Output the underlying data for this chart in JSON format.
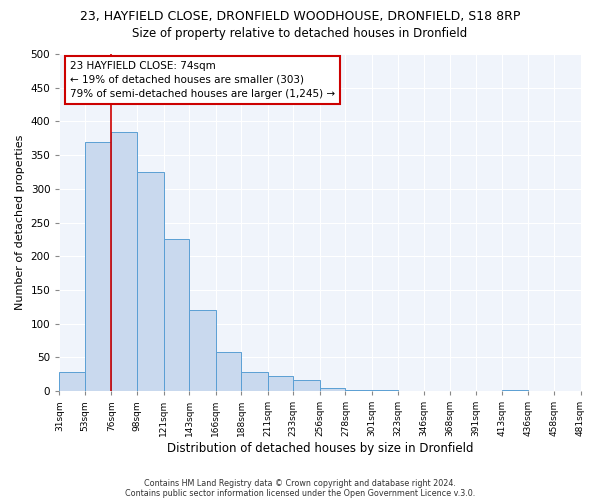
{
  "title": "23, HAYFIELD CLOSE, DRONFIELD WOODHOUSE, DRONFIELD, S18 8RP",
  "subtitle": "Size of property relative to detached houses in Dronfield",
  "xlabel": "Distribution of detached houses by size in Dronfield",
  "ylabel": "Number of detached properties",
  "bar_edges": [
    31,
    53,
    76,
    98,
    121,
    143,
    166,
    188,
    211,
    233,
    256,
    278,
    301,
    323,
    346,
    368,
    391,
    413,
    436,
    458,
    481
  ],
  "bar_heights": [
    28,
    370,
    385,
    325,
    225,
    120,
    58,
    28,
    22,
    16,
    5,
    1,
    1,
    0,
    0,
    0,
    0,
    2,
    0,
    0
  ],
  "bar_color": "#c9d9ee",
  "bar_edge_color": "#5a9fd4",
  "x_tick_labels": [
    "31sqm",
    "53sqm",
    "76sqm",
    "98sqm",
    "121sqm",
    "143sqm",
    "166sqm",
    "188sqm",
    "211sqm",
    "233sqm",
    "256sqm",
    "278sqm",
    "301sqm",
    "323sqm",
    "346sqm",
    "368sqm",
    "391sqm",
    "413sqm",
    "436sqm",
    "458sqm",
    "481sqm"
  ],
  "ylim": [
    0,
    500
  ],
  "yticks": [
    0,
    50,
    100,
    150,
    200,
    250,
    300,
    350,
    400,
    450,
    500
  ],
  "vline_x": 76,
  "vline_color": "#cc0000",
  "annotation_line1": "23 HAYFIELD CLOSE: 74sqm",
  "annotation_line2": "← 19% of detached houses are smaller (303)",
  "annotation_line3": "79% of semi-detached houses are larger (1,245) →",
  "annotation_box_color": "#ffffff",
  "annotation_box_edge": "#cc0000",
  "footer_line1": "Contains HM Land Registry data © Crown copyright and database right 2024.",
  "footer_line2": "Contains public sector information licensed under the Open Government Licence v.3.0.",
  "bg_color": "#f0f4fb",
  "grid_color": "#ffffff",
  "title_fontsize": 9,
  "subtitle_fontsize": 8.5
}
